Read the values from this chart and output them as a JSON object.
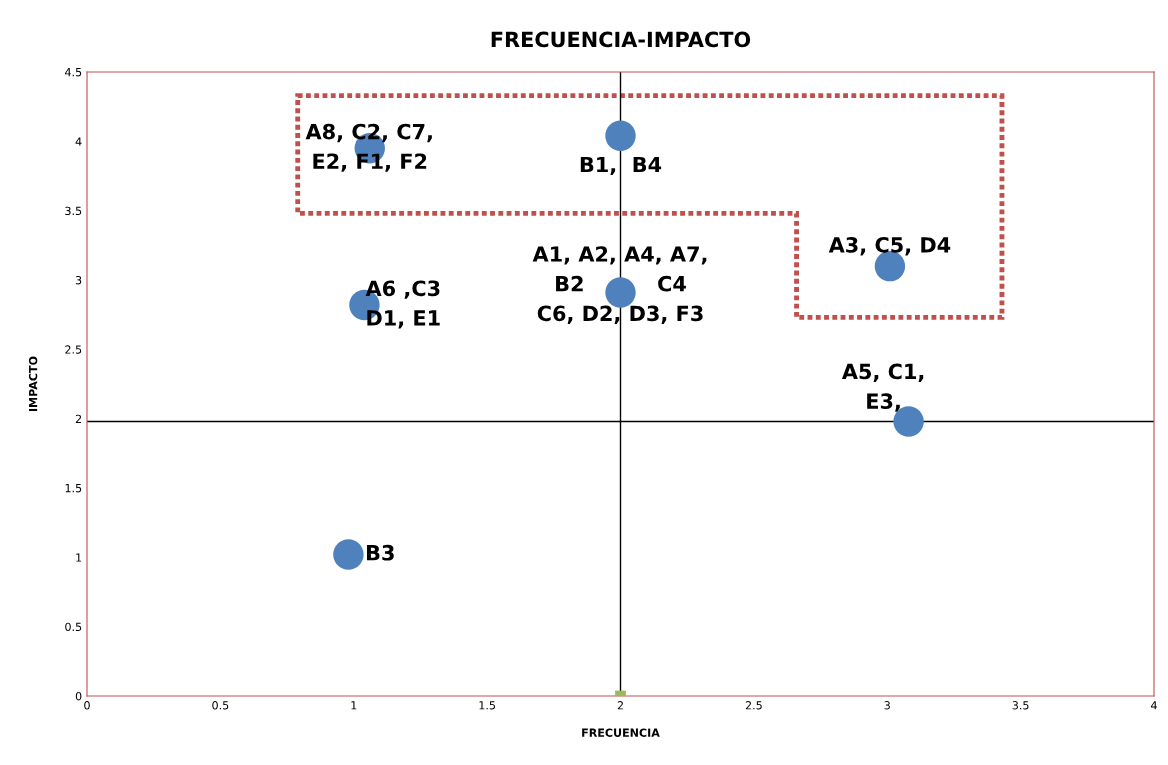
{
  "chart_data": {
    "type": "scatter",
    "title": "FRECUENCIA-IMPACTO",
    "xlabel": "FRECUENCIA",
    "ylabel": "IMPACTO",
    "xlim": [
      0,
      4
    ],
    "ylim": [
      0,
      4.5
    ],
    "xticks": [
      0,
      0.5,
      1,
      1.5,
      2,
      2.5,
      3,
      3.5,
      4
    ],
    "yticks": [
      0,
      0.5,
      1,
      1.5,
      2,
      2.5,
      3,
      3.5,
      4,
      4.5
    ],
    "grid": false,
    "legend": false,
    "marker": "circle",
    "series": [
      {
        "color": "#4f81bd",
        "x": [
          1.06,
          2.0,
          1.04,
          2.0,
          3.01,
          3.08,
          0.98
        ],
        "values": [
          3.95,
          4.04,
          2.82,
          2.91,
          3.1,
          1.98,
          1.02
        ]
      },
      {
        "color": "#9bbb59",
        "marker": "square",
        "x": [
          2
        ],
        "values": [
          0
        ]
      }
    ],
    "ref_lines": [
      {
        "axis": "x",
        "value": 2,
        "color": "#000000"
      },
      {
        "axis": "y",
        "value": 1.98,
        "color": "#000000"
      }
    ],
    "annotations": [
      {
        "text": "A8, C2, C7,\nE2, F1, F2",
        "x": 1.06,
        "y": 3.95
      },
      {
        "text": "B1,  B4",
        "x": 2.0,
        "y": 4.04
      },
      {
        "text": "A6 ,C3\nD1, E1",
        "x": 1.04,
        "y": 2.82
      },
      {
        "text": "A1, A2, A4, A7,\nB2          C4\nC6, D2, D3, F3",
        "x": 2.0,
        "y": 2.91
      },
      {
        "text": "A3, C5, D4",
        "x": 3.01,
        "y": 3.1
      },
      {
        "text": "A5, C1,\nE3,",
        "x": 3.08,
        "y": 1.98
      },
      {
        "text": "B3",
        "x": 0.98,
        "y": 1.02
      }
    ]
  }
}
